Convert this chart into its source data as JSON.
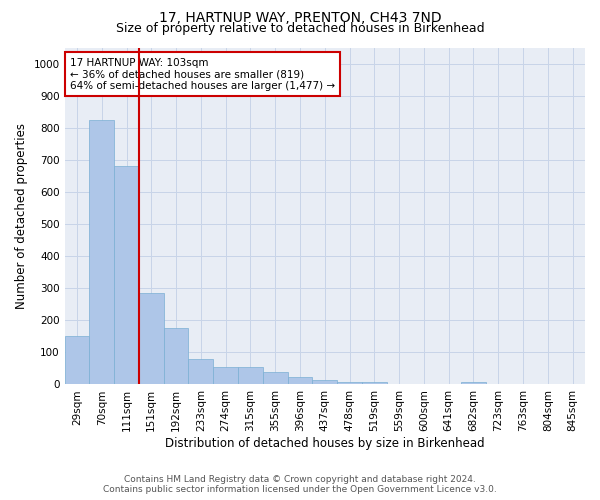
{
  "title": "17, HARTNUP WAY, PRENTON, CH43 7ND",
  "subtitle": "Size of property relative to detached houses in Birkenhead",
  "xlabel": "Distribution of detached houses by size in Birkenhead",
  "ylabel": "Number of detached properties",
  "categories": [
    "29sqm",
    "70sqm",
    "111sqm",
    "151sqm",
    "192sqm",
    "233sqm",
    "274sqm",
    "315sqm",
    "355sqm",
    "396sqm",
    "437sqm",
    "478sqm",
    "519sqm",
    "559sqm",
    "600sqm",
    "641sqm",
    "682sqm",
    "723sqm",
    "763sqm",
    "804sqm",
    "845sqm"
  ],
  "values": [
    150,
    825,
    680,
    285,
    175,
    78,
    55,
    55,
    40,
    22,
    15,
    8,
    8,
    0,
    0,
    0,
    8,
    0,
    0,
    0,
    0
  ],
  "bar_color": "#aec6e8",
  "bar_edgecolor": "#7aafd4",
  "vline_x_index": 2,
  "vline_color": "#cc0000",
  "annotation_text": "17 HARTNUP WAY: 103sqm\n← 36% of detached houses are smaller (819)\n64% of semi-detached houses are larger (1,477) →",
  "annotation_box_edgecolor": "#cc0000",
  "annotation_box_facecolor": "#ffffff",
  "ylim": [
    0,
    1050
  ],
  "yticks": [
    0,
    100,
    200,
    300,
    400,
    500,
    600,
    700,
    800,
    900,
    1000
  ],
  "footer_line1": "Contains HM Land Registry data © Crown copyright and database right 2024.",
  "footer_line2": "Contains public sector information licensed under the Open Government Licence v3.0.",
  "bg_color": "#ffffff",
  "plot_bg_color": "#e8edf5",
  "grid_color": "#c8d4e8",
  "title_fontsize": 10,
  "subtitle_fontsize": 9,
  "xlabel_fontsize": 8.5,
  "ylabel_fontsize": 8.5,
  "tick_fontsize": 7.5,
  "annotation_fontsize": 7.5,
  "footer_fontsize": 6.5
}
